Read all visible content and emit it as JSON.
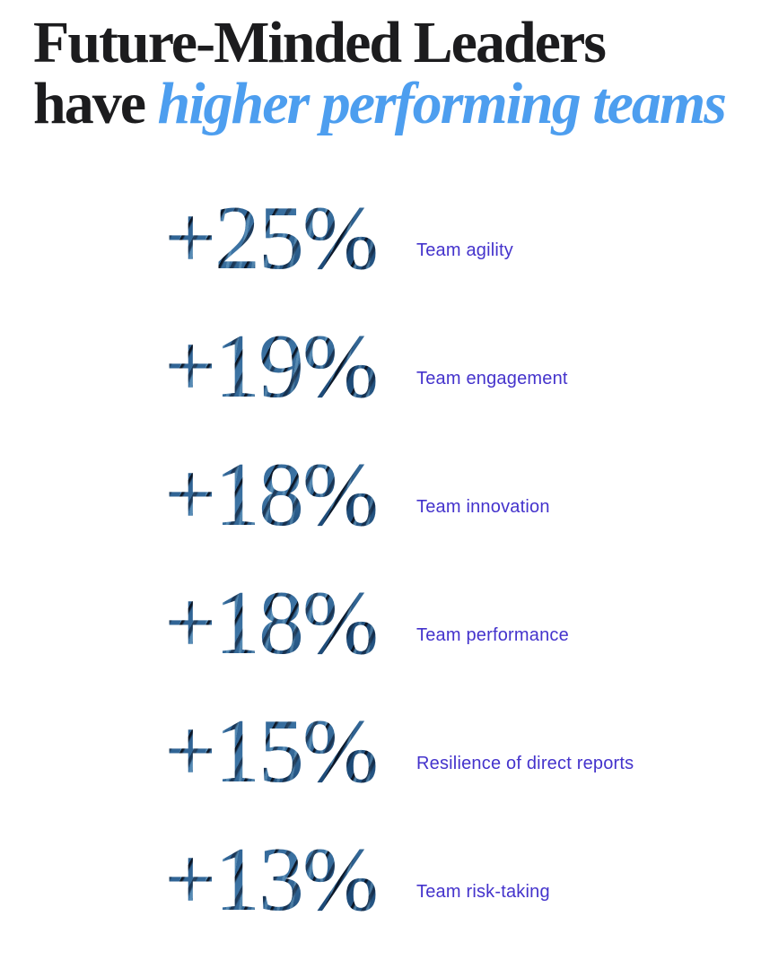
{
  "title": {
    "line1": "Future-Minded Leaders",
    "line2_prefix": "have ",
    "line2_highlight": "higher performing teams"
  },
  "colors": {
    "title_text": "#1c1c1e",
    "title_highlight": "#4d9eef",
    "stat_label": "#4433cc",
    "stat_fill_base": "#2f6291",
    "stat_fill_dark_streak": "#0a1626",
    "background": "#ffffff"
  },
  "stats": [
    {
      "value": "+25%",
      "label": "Team agility"
    },
    {
      "value": "+19%",
      "label": "Team engagement"
    },
    {
      "value": "+18%",
      "label": "Team innovation"
    },
    {
      "value": "+18%",
      "label": "Team performance"
    },
    {
      "value": "+15%",
      "label": "Resilience of direct reports"
    },
    {
      "value": "+13%",
      "label": "Team risk-taking"
    }
  ],
  "chart_data": {
    "type": "bar",
    "title": "Future-Minded Leaders have higher performing teams",
    "categories": [
      "Team agility",
      "Team engagement",
      "Team innovation",
      "Team performance",
      "Resilience of direct reports",
      "Team risk-taking"
    ],
    "values": [
      25,
      19,
      18,
      18,
      15,
      13
    ],
    "value_format": "+{value}%",
    "xlabel": "",
    "ylabel": "",
    "legend": "none",
    "grid": false
  }
}
